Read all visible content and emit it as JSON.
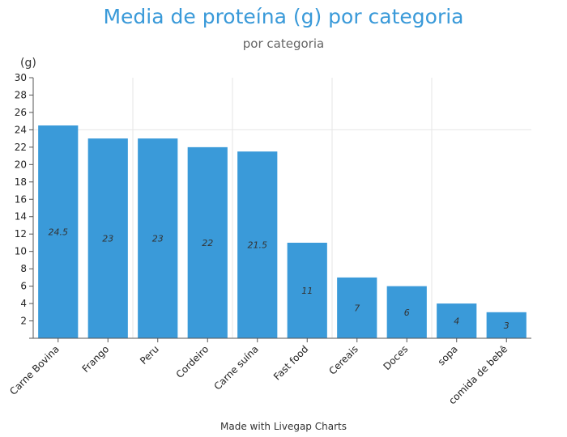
{
  "chart_data": {
    "type": "bar",
    "title": "Media de proteína (g) por categoria",
    "subtitle": "por categoria",
    "ylabel": "(g)",
    "xlabel": "",
    "categories": [
      "Carne Bovina",
      "Frango",
      "Peru",
      "Cordeiro",
      "Carne suína",
      "Fast food",
      "Cereais",
      "Doces",
      "sopa",
      "comida de bebê"
    ],
    "values": [
      24.5,
      23,
      23,
      22,
      21.5,
      11,
      7,
      6,
      4,
      3
    ],
    "ylim": [
      0,
      30
    ],
    "yticks": [
      2,
      4,
      6,
      8,
      10,
      12,
      14,
      16,
      18,
      20,
      22,
      24,
      26,
      28,
      30
    ],
    "grid": true,
    "bar_color": "#3a9ad9"
  },
  "footer": {
    "credit": "Made with Livegap Charts"
  }
}
